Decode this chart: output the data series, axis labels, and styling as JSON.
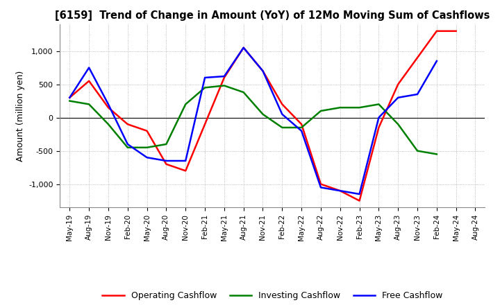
{
  "title": "[6159]  Trend of Change in Amount (YoY) of 12Mo Moving Sum of Cashflows",
  "ylabel": "Amount (million yen)",
  "x_labels": [
    "May-19",
    "Aug-19",
    "Nov-19",
    "Feb-20",
    "May-20",
    "Aug-20",
    "Nov-20",
    "Feb-21",
    "May-21",
    "Aug-21",
    "Nov-21",
    "Feb-22",
    "May-22",
    "Aug-22",
    "Nov-22",
    "Feb-23",
    "May-23",
    "Aug-23",
    "Nov-23",
    "Feb-24",
    "May-24",
    "Aug-24"
  ],
  "operating": [
    300,
    550,
    150,
    -100,
    -200,
    -700,
    -800,
    -100,
    600,
    1050,
    700,
    200,
    -100,
    -1000,
    -1100,
    -1250,
    -150,
    500,
    900,
    1300,
    1300,
    null
  ],
  "investing": [
    250,
    200,
    -100,
    -450,
    -450,
    -400,
    200,
    450,
    480,
    380,
    50,
    -150,
    -150,
    100,
    150,
    150,
    200,
    -100,
    -500,
    -550,
    null,
    null
  ],
  "free": [
    300,
    750,
    200,
    -400,
    -600,
    -650,
    -650,
    600,
    620,
    1050,
    700,
    50,
    -200,
    -1050,
    -1100,
    -1150,
    0,
    300,
    350,
    850,
    null,
    null
  ],
  "ylim": [
    -1350,
    1400
  ],
  "yticks": [
    -1000,
    -500,
    0,
    500,
    1000
  ],
  "colors": {
    "operating": "#ff0000",
    "investing": "#008000",
    "free": "#0000ff"
  },
  "legend_labels": [
    "Operating Cashflow",
    "Investing Cashflow",
    "Free Cashflow"
  ],
  "background_color": "#ffffff",
  "grid_color": "#aaaaaa"
}
